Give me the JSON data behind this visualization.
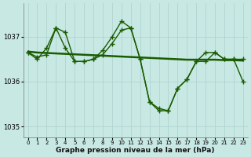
{
  "xlabel": "Graphe pression niveau de la mer (hPa)",
  "bg_color": "#c8e8e4",
  "grid_color": "#b0d4d0",
  "line_color": "#1a5c00",
  "ylim": [
    1034.75,
    1037.75
  ],
  "yticks": [
    1035,
    1036,
    1037
  ],
  "xlim": [
    -0.5,
    23.5
  ],
  "xticks": [
    0,
    1,
    2,
    3,
    4,
    5,
    6,
    7,
    8,
    9,
    10,
    11,
    12,
    13,
    14,
    15,
    16,
    17,
    18,
    19,
    20,
    21,
    22,
    23
  ],
  "series_main": [
    1036.65,
    1036.55,
    1036.6,
    1037.2,
    1037.1,
    1036.45,
    1036.45,
    1036.5,
    1036.7,
    1037.0,
    1037.35,
    1037.2,
    1036.5,
    1035.55,
    1035.35,
    1035.35,
    1035.85,
    1036.05,
    1036.45,
    1036.45,
    1036.65,
    1036.5,
    1036.5,
    1036.0
  ],
  "series_alt": [
    1036.65,
    1036.5,
    1036.75,
    1037.2,
    1036.75,
    1036.45,
    1036.45,
    1036.5,
    1036.6,
    1036.85,
    1037.15,
    1037.2,
    1036.5,
    1035.55,
    1035.4,
    1035.35,
    1035.85,
    1036.05,
    1036.45,
    1036.65,
    1036.65,
    1036.5,
    1036.5,
    1036.5
  ],
  "series_trend": [
    1036.67,
    1036.65,
    1036.64,
    1036.63,
    1036.62,
    1036.61,
    1036.6,
    1036.59,
    1036.58,
    1036.57,
    1036.56,
    1036.55,
    1036.54,
    1036.53,
    1036.52,
    1036.51,
    1036.5,
    1036.49,
    1036.49,
    1036.49,
    1036.49,
    1036.48,
    1036.48,
    1036.47
  ]
}
